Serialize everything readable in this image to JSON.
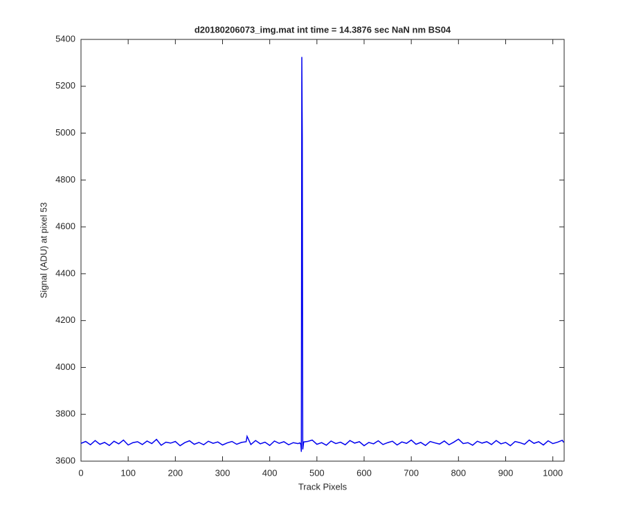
{
  "chart_data": {
    "type": "line",
    "title": "d20180206073_img.mat int time = 14.3876 sec  NaN nm BS04",
    "x_label": "Track Pixels",
    "y_label": "Signal (ADU) at pixel 53",
    "x": [
      0,
      10,
      20,
      30,
      40,
      50,
      60,
      70,
      80,
      90,
      100,
      110,
      120,
      130,
      140,
      150,
      160,
      170,
      180,
      190,
      200,
      210,
      220,
      230,
      240,
      250,
      260,
      270,
      280,
      290,
      300,
      310,
      320,
      330,
      340,
      350,
      352,
      360,
      370,
      380,
      390,
      400,
      410,
      420,
      430,
      440,
      450,
      460,
      464,
      466,
      467,
      468,
      469,
      470,
      472,
      480,
      490,
      500,
      510,
      520,
      530,
      540,
      550,
      560,
      570,
      580,
      590,
      600,
      610,
      620,
      630,
      640,
      650,
      660,
      670,
      680,
      690,
      700,
      710,
      720,
      730,
      740,
      750,
      760,
      770,
      780,
      790,
      800,
      810,
      820,
      830,
      840,
      850,
      860,
      870,
      880,
      890,
      900,
      910,
      920,
      930,
      940,
      950,
      960,
      970,
      980,
      990,
      1000,
      1010,
      1020,
      1023
    ],
    "series": [
      {
        "name": "signal",
        "color": "#0000ee",
        "values": [
          3676,
          3684,
          3670,
          3688,
          3672,
          3680,
          3667,
          3685,
          3674,
          3690,
          3669,
          3679,
          3683,
          3671,
          3686,
          3675,
          3693,
          3668,
          3681,
          3677,
          3684,
          3666,
          3679,
          3687,
          3672,
          3680,
          3670,
          3685,
          3676,
          3682,
          3669,
          3678,
          3684,
          3672,
          3680,
          3683,
          3706,
          3671,
          3688,
          3674,
          3681,
          3667,
          3686,
          3676,
          3683,
          3670,
          3679,
          3675,
          3678,
          3670,
          3640,
          5325,
          4980,
          3650,
          3682,
          3684,
          3690,
          3672,
          3679,
          3668,
          3686,
          3675,
          3681,
          3670,
          3688,
          3677,
          3683,
          3666,
          3680,
          3674,
          3687,
          3671,
          3679,
          3685,
          3669,
          3682,
          3676,
          3690,
          3672,
          3680,
          3667,
          3684,
          3678,
          3673,
          3686,
          3670,
          3681,
          3694,
          3675,
          3679,
          3668,
          3685,
          3677,
          3683,
          3671,
          3688,
          3674,
          3680,
          3666,
          3684,
          3679,
          3672,
          3690,
          3676,
          3683,
          3669,
          3687,
          3675,
          3681,
          3689,
          3680
        ]
      }
    ],
    "xlim": [
      0,
      1024
    ],
    "xticks": [
      0,
      100,
      200,
      300,
      400,
      500,
      600,
      700,
      800,
      900,
      1000
    ],
    "ylim": [
      3600,
      5400
    ],
    "yticks": [
      3600,
      3800,
      4000,
      4200,
      4400,
      4600,
      4800,
      5000,
      5200,
      5400
    ]
  }
}
